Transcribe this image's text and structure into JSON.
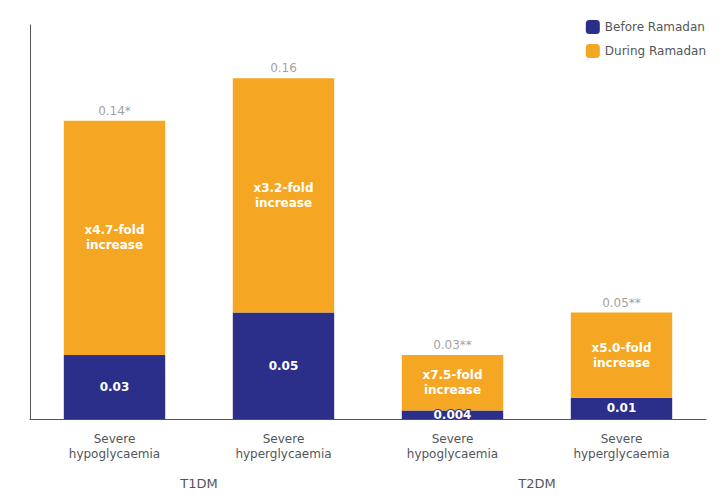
{
  "chart_data": {
    "type": "bar",
    "stacked": true,
    "categories": [
      "Severe\nhypoglycaemia",
      "Severe\nhyperglycaemia",
      "Severe\nhypoglycaemia",
      "Severe\nhyperglycaemia"
    ],
    "category_groups": [
      {
        "label": "T1DM",
        "size": 2
      },
      {
        "label": "T2DM",
        "size": 2
      }
    ],
    "series": [
      {
        "name": "Before Ramadan",
        "color": "#2b2f8a",
        "values": [
          0.03,
          0.05,
          0.004,
          0.01
        ]
      },
      {
        "name": "During Ramadan",
        "color": "#f5a623",
        "values": [
          0.11,
          0.11,
          0.026,
          0.04
        ],
        "annotations": [
          "x4.7-fold\nincrease",
          "x3.2-fold\nincrease",
          "x7.5-fold\nincrease",
          "x5.0-fold\nincrease"
        ]
      }
    ],
    "totals": [
      0.14,
      0.16,
      0.03,
      0.05
    ],
    "total_labels": [
      "0.14*",
      "0.16",
      "0.03**",
      "0.05**"
    ],
    "data_labels": true,
    "ylim": [
      0,
      0.185
    ],
    "yticks": [],
    "tick_labels": "x",
    "grid": false,
    "legend": "upper right"
  }
}
